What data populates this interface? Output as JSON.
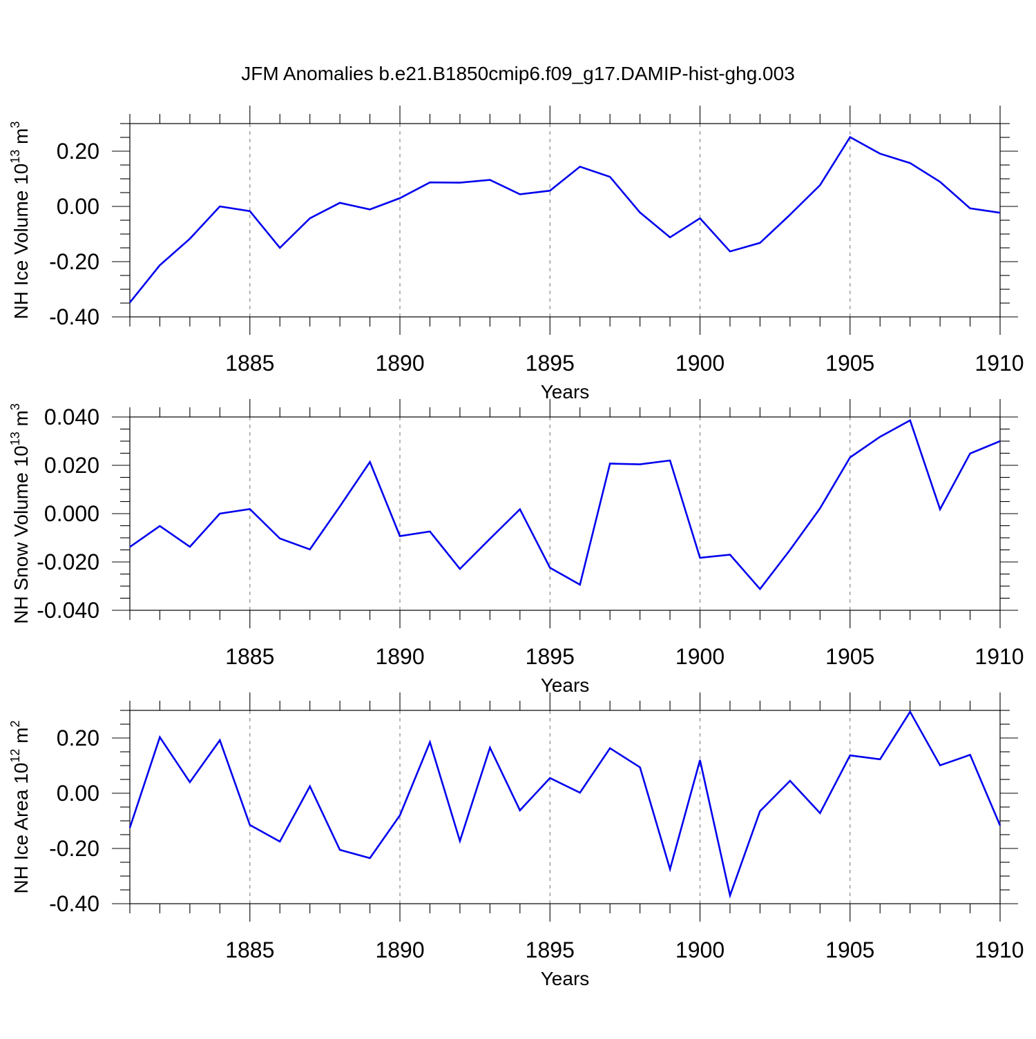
{
  "title": "JFM Anomalies b.e21.B1850cmip6.f09_g17.DAMIP-hist-ghg.003",
  "colors": {
    "line": "#0000ee",
    "axis": "#000000",
    "grid": "#888888"
  },
  "chart_data": [
    {
      "type": "line",
      "xlabel": "Years",
      "ylabel": {
        "main": "NH Ice Volume 10",
        "sup": "13",
        "unit": " m",
        "unit_sup": "3"
      },
      "xlim": [
        1881,
        1910
      ],
      "ylim": [
        -0.4,
        0.3
      ],
      "x_ticks": [
        "1885",
        "1890",
        "1895",
        "1900",
        "1905",
        "1910"
      ],
      "y_ticks": [
        "0.20",
        "0.00",
        "-0.20",
        "-0.40"
      ],
      "x": [
        1881,
        1882,
        1883,
        1884,
        1885,
        1886,
        1887,
        1888,
        1889,
        1890,
        1891,
        1892,
        1893,
        1894,
        1895,
        1896,
        1897,
        1898,
        1899,
        1900,
        1901,
        1902,
        1903,
        1904,
        1905,
        1906,
        1907,
        1908,
        1909,
        1910
      ],
      "values": [
        -0.348,
        -0.213,
        -0.117,
        0.0,
        -0.017,
        -0.15,
        -0.043,
        0.013,
        -0.011,
        0.03,
        0.087,
        0.086,
        0.096,
        0.044,
        0.057,
        0.144,
        0.107,
        -0.022,
        -0.112,
        -0.043,
        -0.163,
        -0.132,
        -0.03,
        0.077,
        0.251,
        0.191,
        0.157,
        0.089,
        -0.007,
        -0.023
      ]
    },
    {
      "type": "line",
      "xlabel": "Years",
      "ylabel": {
        "main": "NH Snow Volume 10",
        "sup": "13",
        "unit": " m",
        "unit_sup": "3"
      },
      "xlim": [
        1881,
        1910
      ],
      "ylim": [
        -0.04,
        0.04
      ],
      "x_ticks": [
        "1885",
        "1890",
        "1895",
        "1900",
        "1905",
        "1910"
      ],
      "y_ticks": [
        "0.040",
        "0.020",
        "0.000",
        "-0.020",
        "-0.040"
      ],
      "x": [
        1881,
        1882,
        1883,
        1884,
        1885,
        1886,
        1887,
        1888,
        1889,
        1890,
        1891,
        1892,
        1893,
        1894,
        1895,
        1896,
        1897,
        1898,
        1899,
        1900,
        1901,
        1902,
        1903,
        1904,
        1905,
        1906,
        1907,
        1908,
        1909,
        1910
      ],
      "values": [
        -0.0138,
        -0.0051,
        -0.0137,
        0.0,
        0.0019,
        -0.0103,
        -0.0148,
        0.003,
        0.0214,
        -0.0093,
        -0.0074,
        -0.0229,
        -0.0104,
        0.0018,
        -0.0224,
        -0.0294,
        0.0207,
        0.0204,
        0.022,
        -0.0183,
        -0.017,
        -0.0312,
        -0.015,
        0.0022,
        0.0233,
        0.0318,
        0.0386,
        0.0018,
        0.0249,
        0.03
      ]
    },
    {
      "type": "line",
      "xlabel": "Years",
      "ylabel": {
        "main": "NH Ice Area 10",
        "sup": "12",
        "unit": " m",
        "unit_sup": "2"
      },
      "xlim": [
        1881,
        1910
      ],
      "ylim": [
        -0.4,
        0.3
      ],
      "x_ticks": [
        "1885",
        "1890",
        "1895",
        "1900",
        "1905",
        "1910"
      ],
      "y_ticks": [
        "0.20",
        "0.00",
        "-0.20",
        "-0.40"
      ],
      "x": [
        1881,
        1882,
        1883,
        1884,
        1885,
        1886,
        1887,
        1888,
        1889,
        1890,
        1891,
        1892,
        1893,
        1894,
        1895,
        1896,
        1897,
        1898,
        1899,
        1900,
        1901,
        1902,
        1903,
        1904,
        1905,
        1906,
        1907,
        1908,
        1909,
        1910
      ],
      "values": [
        -0.125,
        0.203,
        0.04,
        0.192,
        -0.115,
        -0.175,
        0.025,
        -0.205,
        -0.235,
        -0.08,
        0.185,
        -0.173,
        0.165,
        -0.062,
        0.055,
        0.002,
        0.163,
        0.094,
        -0.275,
        0.12,
        -0.37,
        -0.065,
        0.045,
        -0.072,
        0.137,
        0.123,
        0.295,
        0.101,
        0.139,
        -0.117
      ]
    }
  ]
}
